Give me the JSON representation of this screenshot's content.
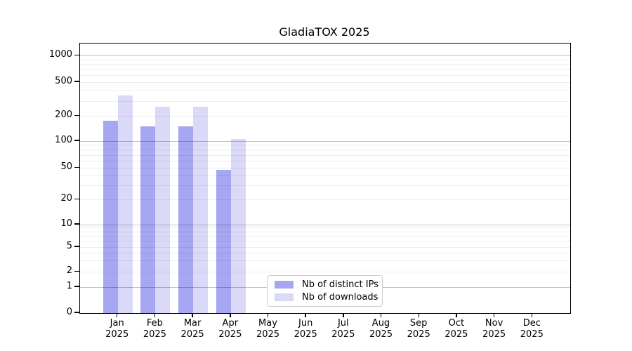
{
  "chart_data": {
    "type": "bar",
    "title": "GladiaTOX 2025",
    "categories": [
      "Jan",
      "Feb",
      "Mar",
      "Apr",
      "May",
      "Jun",
      "Jul",
      "Aug",
      "Sep",
      "Oct",
      "Nov",
      "Dec"
    ],
    "category_year": "2025",
    "series": [
      {
        "name": "Nb of distinct IPs",
        "color": "#a6a6f2",
        "values": [
          175,
          150,
          150,
          47,
          0,
          0,
          0,
          0,
          0,
          0,
          0,
          0
        ]
      },
      {
        "name": "Nb of downloads",
        "color": "#dadaf8",
        "values": [
          350,
          255,
          255,
          105,
          0,
          0,
          0,
          0,
          0,
          0,
          0,
          0
        ]
      }
    ],
    "yscale": "symlog",
    "yticks": [
      0,
      1,
      2,
      5,
      10,
      20,
      50,
      100,
      200,
      500,
      1000
    ],
    "ylim": [
      0,
      1400
    ],
    "grid": true,
    "major_grid_at": [
      1,
      10,
      100,
      1000
    ],
    "legend_position": "inside-bottom-center",
    "colors": {
      "axis": "#000000",
      "major_grid": "#c3c3c3",
      "minor_grid": "#ededed",
      "legend_border": "#cccccc",
      "background": "#ffffff"
    }
  }
}
